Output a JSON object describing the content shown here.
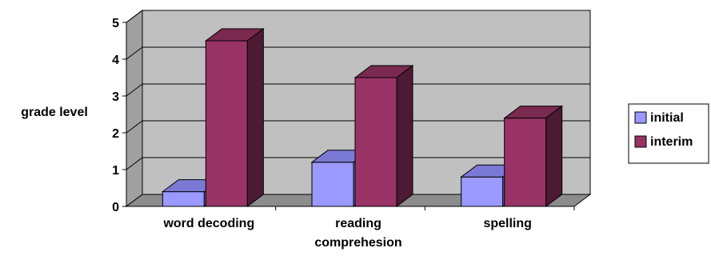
{
  "chart_data": {
    "type": "bar",
    "title": "",
    "xlabel": "",
    "ylabel": "grade level",
    "ylim": [
      0,
      5
    ],
    "yticks": [
      "0",
      "1",
      "2",
      "3",
      "4",
      "5"
    ],
    "categories": [
      [
        "word decoding"
      ],
      [
        "reading",
        "comprehesion"
      ],
      [
        "spelling"
      ]
    ],
    "series": [
      {
        "name": "initial",
        "values": [
          0.4,
          1.2,
          0.8
        ],
        "color": "#9999ff",
        "side": "#6666b3",
        "top": "#7a7ad6"
      },
      {
        "name": "interim",
        "values": [
          4.5,
          3.5,
          2.4
        ],
        "color": "#993366",
        "side": "#4d1a33",
        "top": "#7a294f"
      }
    ],
    "grid": true,
    "legend": "right",
    "wall_color": "#c0c0c0"
  }
}
